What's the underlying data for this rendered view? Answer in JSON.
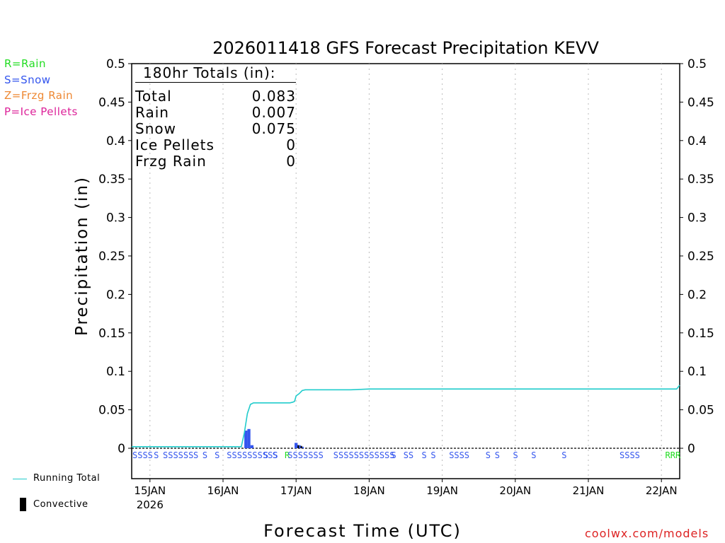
{
  "legend_codes": [
    {
      "text": "R=Rain",
      "color": "#22dd22"
    },
    {
      "text": "S=Snow",
      "color": "#3355ee"
    },
    {
      "text": "Z=Frzg Rain",
      "color": "#ee8833"
    },
    {
      "text": "P=Ice Pellets",
      "color": "#dd2299"
    }
  ],
  "legend_lines": {
    "running_total": "Running Total",
    "convective": "Convective"
  },
  "totals": {
    "heading": "180hr Totals (in):",
    "rows": [
      {
        "label": "Total",
        "value": "0.083"
      },
      {
        "label": "Rain",
        "value": "0.007"
      },
      {
        "label": "Snow",
        "value": "0.075"
      },
      {
        "label": "Ice Pellets",
        "value": "0"
      },
      {
        "label": "Frzg Rain",
        "value": "0"
      }
    ]
  },
  "credit": "coolwx.com/models",
  "chart_data": {
    "type": "bar",
    "title": "2026011418 GFS Forecast Precipitation KEVV",
    "xlabel": "Forecast Time (UTC)",
    "ylabel": "Precipitation (in)",
    "x_range_hours": [
      0,
      180
    ],
    "ylim": [
      0,
      0.5
    ],
    "yticks": [
      0,
      0.05,
      0.1,
      0.15,
      0.2,
      0.25,
      0.3,
      0.35,
      0.4,
      0.45,
      0.5
    ],
    "ytick_labels": [
      "0",
      "0.05",
      "0.1",
      "0.15",
      "0.2",
      "0.25",
      "0.3",
      "0.35",
      "0.4",
      "0.45",
      "0.5"
    ],
    "xticks": [
      {
        "hour": 6,
        "label": "15JAN",
        "sublabel": "2026"
      },
      {
        "hour": 30,
        "label": "16JAN"
      },
      {
        "hour": 54,
        "label": "17JAN"
      },
      {
        "hour": 78,
        "label": "18JAN"
      },
      {
        "hour": 102,
        "label": "19JAN"
      },
      {
        "hour": 126,
        "label": "20JAN"
      },
      {
        "hour": 150,
        "label": "21JAN"
      },
      {
        "hour": 174,
        "label": "22JAN"
      }
    ],
    "grid": "vertical dotted at each day",
    "series": [
      {
        "name": "Running Total",
        "kind": "line",
        "color": "#22cccc",
        "points": [
          [
            0,
            0.002
          ],
          [
            36,
            0.002
          ],
          [
            37,
            0.02
          ],
          [
            38,
            0.045
          ],
          [
            39,
            0.057
          ],
          [
            40,
            0.059
          ],
          [
            52,
            0.059
          ],
          [
            53,
            0.06
          ],
          [
            53.5,
            0.061
          ],
          [
            54,
            0.068
          ],
          [
            55,
            0.071
          ],
          [
            56,
            0.075
          ],
          [
            57,
            0.076
          ],
          [
            72,
            0.076
          ],
          [
            78,
            0.077
          ],
          [
            179,
            0.077
          ],
          [
            180,
            0.082
          ]
        ]
      },
      {
        "name": "Convective",
        "kind": "bar",
        "color": "#000000",
        "values": [
          [
            54,
            0.004
          ],
          [
            55,
            0.003
          ]
        ]
      }
    ],
    "precip_bars": [
      {
        "hour": 37.5,
        "value": 0.023,
        "color": "#3355ee"
      },
      {
        "hour": 38.5,
        "value": 0.025,
        "color": "#3355ee"
      },
      {
        "hour": 39.5,
        "value": 0.004,
        "color": "#3355ee"
      },
      {
        "hour": 54,
        "value": 0.007,
        "color": "#3355ee"
      },
      {
        "hour": 55,
        "value": 0.004,
        "color": "#3355ee"
      },
      {
        "hour": 56,
        "value": 0.002,
        "color": "#3355ee"
      }
    ],
    "ptype_labels": [
      {
        "start": 0,
        "text": "SSSS",
        "color": "#3355ee"
      },
      {
        "start": 7,
        "text": "S",
        "color": "#3355ee"
      },
      {
        "start": 10,
        "text": "SSSSSS",
        "color": "#3355ee"
      },
      {
        "start": 20,
        "text": "S",
        "color": "#3355ee"
      },
      {
        "start": 23,
        "text": "S",
        "color": "#3355ee"
      },
      {
        "start": 27,
        "text": "S",
        "color": "#3355ee"
      },
      {
        "start": 31,
        "text": "SSSSSSSSSS",
        "color": "#3355ee"
      },
      {
        "start": 43,
        "text": "S",
        "color": "#3355ee"
      },
      {
        "start": 46,
        "text": "S",
        "color": "#3355ee"
      },
      {
        "start": 50,
        "text": "R",
        "color": "#22dd22"
      },
      {
        "start": 51,
        "text": "SSSSSSS",
        "color": "#3355ee"
      },
      {
        "start": 66,
        "text": "SSSSSSSSSSSS",
        "color": "#3355ee"
      },
      {
        "start": 85,
        "text": "S",
        "color": "#3355ee"
      },
      {
        "start": 89,
        "text": "SS",
        "color": "#3355ee"
      },
      {
        "start": 95,
        "text": "S",
        "color": "#3355ee"
      },
      {
        "start": 98,
        "text": "S",
        "color": "#3355ee"
      },
      {
        "start": 104,
        "text": "SSS",
        "color": "#3355ee"
      },
      {
        "start": 109,
        "text": "S",
        "color": "#3355ee"
      },
      {
        "start": 116,
        "text": "S",
        "color": "#3355ee"
      },
      {
        "start": 119,
        "text": "S",
        "color": "#3355ee"
      },
      {
        "start": 125,
        "text": "S",
        "color": "#3355ee"
      },
      {
        "start": 131,
        "text": "S",
        "color": "#3355ee"
      },
      {
        "start": 141,
        "text": "S",
        "color": "#3355ee"
      },
      {
        "start": 160,
        "text": "SSSS",
        "color": "#3355ee"
      },
      {
        "start": 175,
        "text": "RRR",
        "color": "#22dd22"
      }
    ]
  }
}
